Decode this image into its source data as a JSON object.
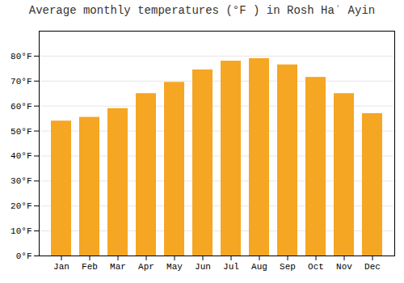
{
  "chart_data": {
    "type": "bar",
    "title": "Average monthly temperatures (°F ) in Rosh Haʾ Ayin",
    "categories": [
      "Jan",
      "Feb",
      "Mar",
      "Apr",
      "May",
      "Jun",
      "Jul",
      "Aug",
      "Sep",
      "Oct",
      "Nov",
      "Dec"
    ],
    "values": [
      54,
      55.5,
      59,
      65,
      69.5,
      74.5,
      78,
      79,
      76.5,
      71.5,
      65,
      57
    ],
    "color": "#F5A623",
    "ylim": [
      0,
      90
    ],
    "yticks": [
      {
        "value": 0,
        "label": "0°F"
      },
      {
        "value": 10,
        "label": "10°F"
      },
      {
        "value": 20,
        "label": "20°F"
      },
      {
        "value": 30,
        "label": "30°F"
      },
      {
        "value": 40,
        "label": "40°F"
      },
      {
        "value": 50,
        "label": "50°F"
      },
      {
        "value": 60,
        "label": "60°F"
      },
      {
        "value": 70,
        "label": "70°F"
      },
      {
        "value": 80,
        "label": "80°F"
      }
    ],
    "grid": true
  }
}
